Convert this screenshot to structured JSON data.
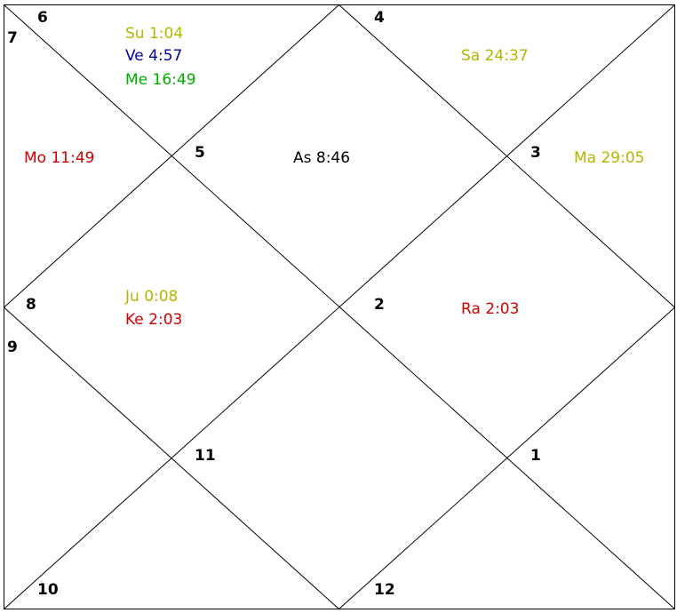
{
  "colors": {
    "yellow": "#b5b500",
    "blue": "#0000a8",
    "green": "#00b000",
    "red": "#d00000",
    "black": "#000000"
  },
  "houses": [
    "1",
    "2",
    "3",
    "4",
    "5",
    "6",
    "7",
    "8",
    "9",
    "10",
    "11",
    "12"
  ],
  "planets": {
    "su": {
      "label": "Su 1:04",
      "color": "yellow"
    },
    "ve": {
      "label": "Ve 4:57",
      "color": "blue"
    },
    "me": {
      "label": "Me 16:49",
      "color": "green"
    },
    "mo": {
      "label": "Mo 11:49",
      "color": "red"
    },
    "as": {
      "label": "As 8:46",
      "color": "black"
    },
    "sa": {
      "label": "Sa 24:37",
      "color": "yellow"
    },
    "ma": {
      "label": "Ma 29:05",
      "color": "yellow"
    },
    "ju": {
      "label": "Ju 0:08",
      "color": "yellow"
    },
    "ke": {
      "label": "Ke 2:03",
      "color": "red"
    },
    "ra": {
      "label": "Ra 2:03",
      "color": "red"
    }
  }
}
